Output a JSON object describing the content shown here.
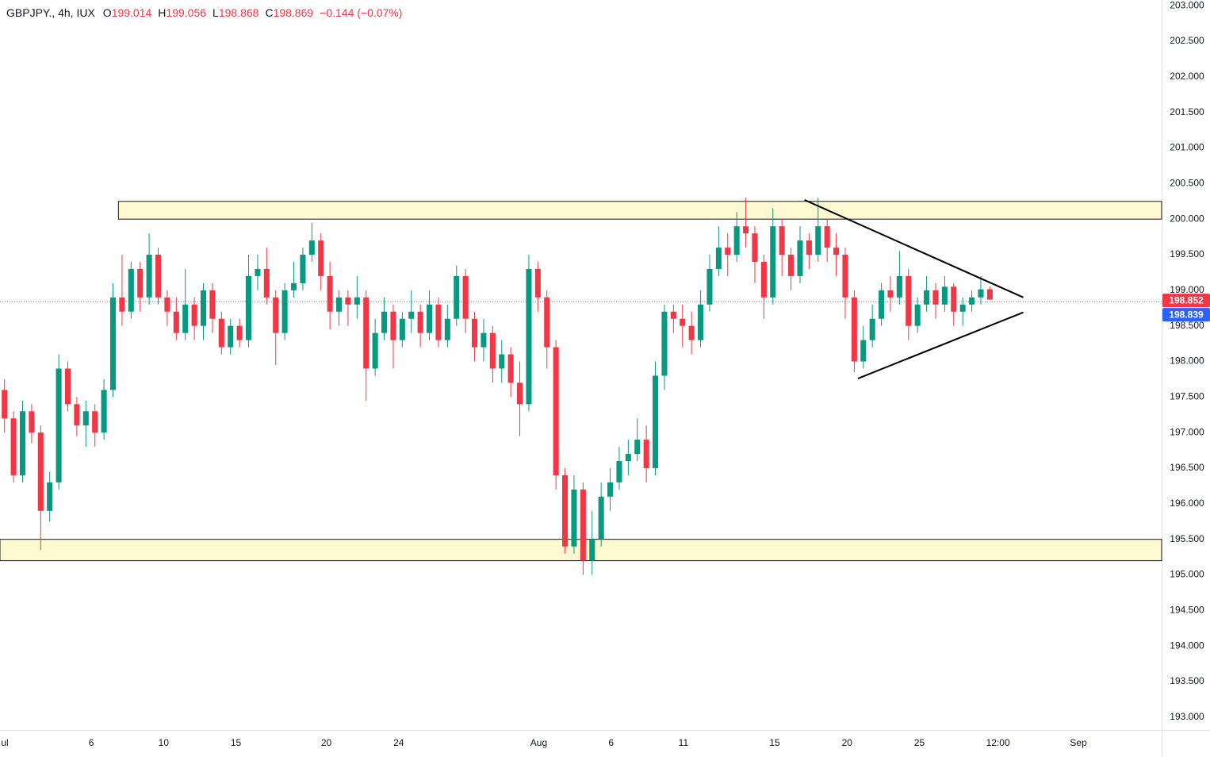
{
  "chart_data": {
    "type": "candlestick",
    "header": {
      "symbol": "GBPJPY., 4h, IUX",
      "open_label": "O",
      "open": 199.014,
      "high_label": "H",
      "high": 199.056,
      "low_label": "L",
      "low": 198.868,
      "close_label": "C",
      "close": 198.869,
      "change": "−0.144 (−0.07%)"
    },
    "up_color": "#089981",
    "down_color": "#f23645",
    "open": [
      197.6,
      197.2,
      196.4,
      197.3,
      197.0,
      195.9,
      196.3,
      197.9,
      197.4,
      197.1,
      197.3,
      197.0,
      197.6,
      198.9,
      198.7,
      199.3,
      198.9,
      199.5,
      198.9,
      198.7,
      198.4,
      198.8,
      198.5,
      199.0,
      198.6,
      198.2,
      198.5,
      198.3,
      199.2,
      199.3,
      198.9,
      198.4,
      199.0,
      199.1,
      199.5,
      199.7,
      199.2,
      198.7,
      198.9,
      198.8,
      198.9,
      197.9,
      198.4,
      198.7,
      198.3,
      198.6,
      198.7,
      198.4,
      198.8,
      198.3,
      198.6,
      199.2,
      198.6,
      198.2,
      198.4,
      197.9,
      198.1,
      197.7,
      197.4,
      199.3,
      198.9,
      198.2,
      196.4,
      195.4,
      196.2,
      195.2,
      195.5,
      196.1,
      196.3,
      196.6,
      196.7,
      196.9,
      196.5,
      197.8,
      198.7,
      198.6,
      198.5,
      198.3,
      198.8,
      199.3,
      199.6,
      199.5,
      199.9,
      199.8,
      199.4,
      198.9,
      199.9,
      199.5,
      199.2,
      199.7,
      199.5,
      199.9,
      199.6,
      199.5,
      198.9,
      198.0,
      198.3,
      198.6,
      199.0,
      198.9,
      199.2,
      198.5,
      198.8,
      199.0,
      198.8,
      199.05,
      198.7,
      198.8,
      198.9,
      199.014
    ],
    "high": [
      197.75,
      197.3,
      197.45,
      197.4,
      197.1,
      196.45,
      198.1,
      198.0,
      197.5,
      197.45,
      197.4,
      197.75,
      199.1,
      199.5,
      199.4,
      199.4,
      199.8,
      199.6,
      199.0,
      198.9,
      199.3,
      198.9,
      199.1,
      199.1,
      198.7,
      198.6,
      198.6,
      199.5,
      199.5,
      199.6,
      199.0,
      199.1,
      199.4,
      199.6,
      199.95,
      199.8,
      199.4,
      199.0,
      199.0,
      199.2,
      199.0,
      198.6,
      198.9,
      198.8,
      198.7,
      199.0,
      198.8,
      199.0,
      198.9,
      198.8,
      199.35,
      199.3,
      198.7,
      198.6,
      198.5,
      198.3,
      198.2,
      198.0,
      199.5,
      199.4,
      199.0,
      198.3,
      196.5,
      196.4,
      196.3,
      195.9,
      196.3,
      196.5,
      196.8,
      196.9,
      197.2,
      197.1,
      198.0,
      198.8,
      198.8,
      198.8,
      198.7,
      199.0,
      199.5,
      199.9,
      199.8,
      200.1,
      200.3,
      199.9,
      199.5,
      200.15,
      200.0,
      199.6,
      199.9,
      199.8,
      200.3,
      200.0,
      199.8,
      199.6,
      199.0,
      198.5,
      198.8,
      199.1,
      199.2,
      199.55,
      199.3,
      198.9,
      199.2,
      199.1,
      199.2,
      199.1,
      198.9,
      199.0,
      199.2,
      199.056
    ],
    "low": [
      197.0,
      196.3,
      196.3,
      196.85,
      195.35,
      195.75,
      196.2,
      197.3,
      196.95,
      196.8,
      196.8,
      196.9,
      197.5,
      198.5,
      198.6,
      198.7,
      198.8,
      198.8,
      198.5,
      198.3,
      198.3,
      198.3,
      198.3,
      198.4,
      198.1,
      198.1,
      198.2,
      198.2,
      199.0,
      198.8,
      197.95,
      198.3,
      198.9,
      199.0,
      199.4,
      199.0,
      198.45,
      198.5,
      198.5,
      198.6,
      197.45,
      197.8,
      198.3,
      197.9,
      198.2,
      198.4,
      198.2,
      198.3,
      198.2,
      198.2,
      198.5,
      198.4,
      198.0,
      198.0,
      197.7,
      197.7,
      197.5,
      196.95,
      197.3,
      198.7,
      197.9,
      196.2,
      195.3,
      195.3,
      195.0,
      195.0,
      195.4,
      195.9,
      196.2,
      196.4,
      196.6,
      196.3,
      196.4,
      197.6,
      198.4,
      198.2,
      198.1,
      198.2,
      198.7,
      199.2,
      199.2,
      199.4,
      199.6,
      199.1,
      198.6,
      198.8,
      199.2,
      199.0,
      199.1,
      199.3,
      199.4,
      199.4,
      199.2,
      198.6,
      197.85,
      197.9,
      198.2,
      198.5,
      198.7,
      198.8,
      198.3,
      198.4,
      198.7,
      198.6,
      198.7,
      198.5,
      198.5,
      198.7,
      198.8,
      198.868
    ],
    "close": [
      197.2,
      196.4,
      197.3,
      197.0,
      195.9,
      196.3,
      197.9,
      197.4,
      197.1,
      197.3,
      197.0,
      197.6,
      198.9,
      198.7,
      199.3,
      198.9,
      199.5,
      198.9,
      198.7,
      198.4,
      198.8,
      198.5,
      199.0,
      198.6,
      198.2,
      198.5,
      198.3,
      199.2,
      199.3,
      198.9,
      198.4,
      199.0,
      199.1,
      199.5,
      199.7,
      199.2,
      198.7,
      198.9,
      198.8,
      198.9,
      197.9,
      198.4,
      198.7,
      198.3,
      198.6,
      198.7,
      198.4,
      198.8,
      198.3,
      198.6,
      199.2,
      198.6,
      198.2,
      198.4,
      197.9,
      198.1,
      197.7,
      197.4,
      199.3,
      198.9,
      198.2,
      196.4,
      195.4,
      196.2,
      195.2,
      195.5,
      196.1,
      196.3,
      196.6,
      196.7,
      196.9,
      196.5,
      197.8,
      198.7,
      198.6,
      198.5,
      198.3,
      198.8,
      199.3,
      199.6,
      199.5,
      199.9,
      199.8,
      199.4,
      198.9,
      199.9,
      199.5,
      199.2,
      199.7,
      199.5,
      199.9,
      199.6,
      199.5,
      198.9,
      198.0,
      198.3,
      198.6,
      199.0,
      198.9,
      199.2,
      198.5,
      198.8,
      199.0,
      198.8,
      199.05,
      198.7,
      198.8,
      198.9,
      199.014,
      198.869
    ],
    "xlim": [
      -0.5,
      128
    ],
    "xticks": [
      {
        "value": 0,
        "label": "ul"
      },
      {
        "value": 9.6,
        "label": "6"
      },
      {
        "value": 17.6,
        "label": "10"
      },
      {
        "value": 25.6,
        "label": "15"
      },
      {
        "value": 35.6,
        "label": "20"
      },
      {
        "value": 43.6,
        "label": "24"
      },
      {
        "value": 59.1,
        "label": "Aug"
      },
      {
        "value": 67.1,
        "label": "6"
      },
      {
        "value": 75.1,
        "label": "11"
      },
      {
        "value": 85.2,
        "label": "15"
      },
      {
        "value": 93.2,
        "label": "20"
      },
      {
        "value": 101.2,
        "label": "25"
      },
      {
        "value": 109.9,
        "label": "12:00"
      },
      {
        "value": 118.8,
        "label": "Sep"
      }
    ],
    "ylim": [
      192.82,
      203.08
    ],
    "yticks": [
      {
        "value": 193,
        "label": "193.000"
      },
      {
        "value": 193.5,
        "label": "193.500"
      },
      {
        "value": 194,
        "label": "194.000"
      },
      {
        "value": 194.5,
        "label": "194.500"
      },
      {
        "value": 195,
        "label": "195.000"
      },
      {
        "value": 195.5,
        "label": "195.500"
      },
      {
        "value": 196,
        "label": "196.000"
      },
      {
        "value": 196.5,
        "label": "196.500"
      },
      {
        "value": 197,
        "label": "197.000"
      },
      {
        "value": 197.5,
        "label": "197.500"
      },
      {
        "value": 198,
        "label": "198.000"
      },
      {
        "value": 198.5,
        "label": "198.500"
      },
      {
        "value": 199,
        "label": "199.000"
      },
      {
        "value": 199.5,
        "label": "199.500"
      },
      {
        "value": 200,
        "label": "200.000"
      },
      {
        "value": 200.5,
        "label": "200.500"
      },
      {
        "value": 201,
        "label": "201.000"
      },
      {
        "value": 201.5,
        "label": "201.500"
      },
      {
        "value": 202,
        "label": "202.000"
      },
      {
        "value": 202.5,
        "label": "202.500"
      },
      {
        "value": 203,
        "label": "203.000"
      }
    ],
    "grid": false,
    "price_tags": [
      {
        "value": 198.852,
        "color": "#f23645"
      },
      {
        "value": 198.839,
        "color": "#2962ff"
      }
    ],
    "price_line": 198.839,
    "zones": [
      {
        "x_start": 12.6,
        "y": [
          200.0,
          200.25
        ]
      },
      {
        "x_start": -0.5,
        "y": [
          195.2,
          195.5
        ]
      }
    ],
    "zone_color": "#fff9d2",
    "trendlines": [
      {
        "x": [
          88.5,
          112.7
        ],
        "y": [
          200.27,
          198.9
        ]
      },
      {
        "x": [
          94.4,
          112.7
        ],
        "y": [
          197.76,
          198.69
        ]
      }
    ]
  }
}
